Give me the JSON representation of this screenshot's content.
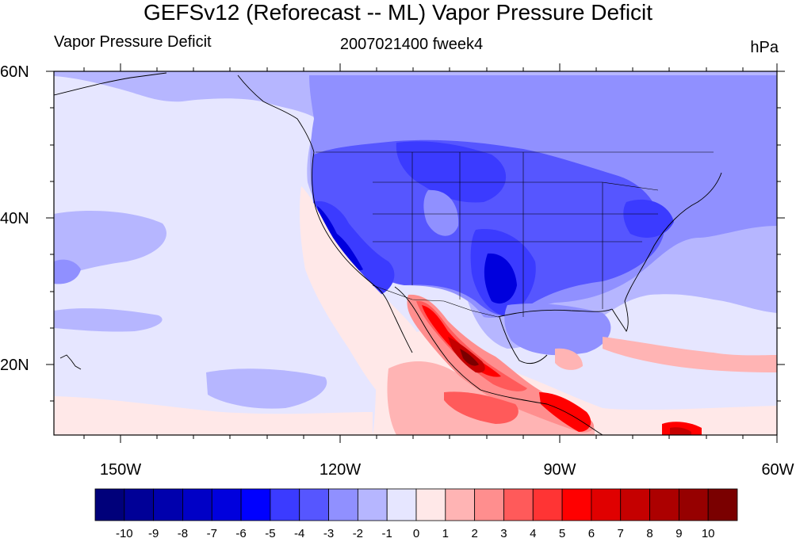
{
  "title": "GEFSv12 (Reforecast -- ML) Vapor Pressure Deficit",
  "subtitle_left": "Vapor Pressure Deficit",
  "subtitle_center": "2007021400 fweek4",
  "subtitle_right": "hPa",
  "map": {
    "projection": "cylindrical equidistant",
    "lon_range": [
      -160,
      -60
    ],
    "lat_range": [
      10,
      60
    ],
    "lat_labels": [
      "60N",
      "40N",
      "20N"
    ],
    "lon_labels": [
      "150W",
      "120W",
      "90W",
      "60W"
    ]
  },
  "colorbar": {
    "labels": [
      "-10",
      "-9",
      "-8",
      "-7",
      "-6",
      "-5",
      "-4",
      "-3",
      "-2",
      "-1",
      "0",
      "1",
      "2",
      "3",
      "4",
      "5",
      "6",
      "7",
      "8",
      "9",
      "10"
    ],
    "colors": [
      "#00007a",
      "#000097",
      "#0000ad",
      "#0000c6",
      "#0000dd",
      "#0000ff",
      "#3b3bff",
      "#5656ff",
      "#9090ff",
      "#b6b6ff",
      "#e6e6ff",
      "#ffe8e8",
      "#ffb4b4",
      "#ff8e8e",
      "#ff5a5a",
      "#ff3434",
      "#ff0000",
      "#e00000",
      "#c50000",
      "#ac0000",
      "#960000",
      "#7a0000"
    ]
  },
  "colors": {
    "ocean_light": "#e6e6ff",
    "negative_mid": "#9090ff",
    "negative_strong": "#3b3bff",
    "positive_light": "#ffe8e8",
    "positive_strong": "#ff3434"
  }
}
